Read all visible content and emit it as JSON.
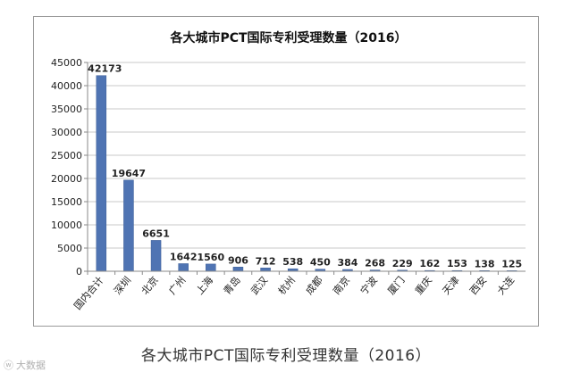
{
  "caption": "各大城市PCT国际专利受理数量（2016）",
  "watermark": "大数据",
  "watermark_icon": "weibo-logo-icon",
  "colors": {
    "bar": "#4f74b3",
    "bar_edge": "#3b5d96",
    "grid": "#c9c9c9",
    "axis": "#8a8a8a",
    "text": "#222222"
  },
  "chart_data": {
    "type": "bar",
    "title": "各大城市PCT国际专利受理数量（2016）",
    "categories": [
      "国内合计",
      "深圳",
      "北京",
      "广州",
      "上海",
      "青岛",
      "武汉",
      "杭州",
      "成都",
      "南京",
      "宁波",
      "厦门",
      "重庆",
      "天津",
      "西安",
      "大连"
    ],
    "values": [
      42173,
      19647,
      6651,
      1642,
      1560,
      906,
      712,
      538,
      450,
      384,
      268,
      229,
      162,
      153,
      138,
      125
    ],
    "yticks": [
      0,
      5000,
      10000,
      15000,
      20000,
      25000,
      30000,
      35000,
      40000,
      45000
    ],
    "ylim": [
      0,
      45000
    ],
    "grid": true,
    "legend": "none"
  }
}
